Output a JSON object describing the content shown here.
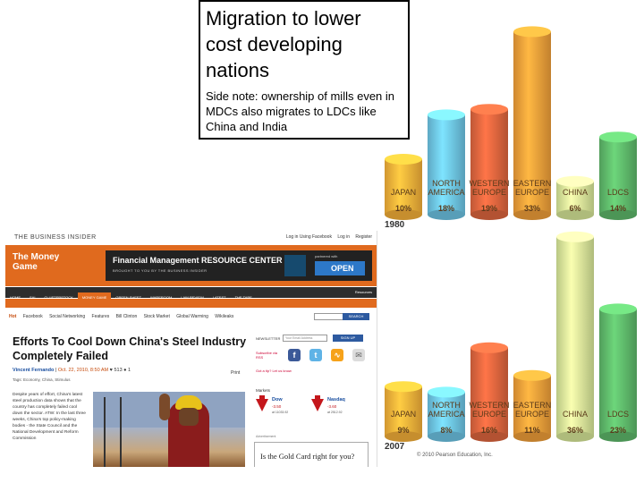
{
  "slide": {
    "title": "Migration to lower cost developing nations",
    "side_note": "Side note: ownership of mills even in MDCs also migrates to LDCs like China and India"
  },
  "chart_data": [
    {
      "type": "bar",
      "title": "",
      "year": "1980",
      "categories": [
        "JAPAN",
        "NORTH AMERICA",
        "WESTERN EUROPE",
        "EASTERN EUROPE",
        "CHINA",
        "LDCS"
      ],
      "values": [
        10,
        18,
        19,
        33,
        6,
        14
      ],
      "value_labels": [
        "10%",
        "18%",
        "19%",
        "33%",
        "6%",
        "14%"
      ],
      "colors": [
        "#f7b23a",
        "#6ec6e6",
        "#e0663f",
        "#f3a03a",
        "#d9ea9a",
        "#5fba6b"
      ]
    },
    {
      "type": "bar",
      "title": "",
      "year": "2007",
      "categories": [
        "JAPAN",
        "NORTH AMERICA",
        "WESTERN EUROPE",
        "EASTERN EUROPE",
        "CHINA",
        "LDCS"
      ],
      "values": [
        9,
        8,
        16,
        11,
        36,
        23
      ],
      "value_labels": [
        "9%",
        "8%",
        "16%",
        "11%",
        "36%",
        "23%"
      ],
      "colors": [
        "#f7b23a",
        "#6ec6e6",
        "#e0663f",
        "#f3a03a",
        "#d9ea9a",
        "#5fba6b"
      ]
    }
  ],
  "copyright": "© 2010 Pearson Education, Inc.",
  "article": {
    "site_name": "THE BUSINESS INSIDER",
    "section_title": "The Money Game",
    "login_links": [
      "Log in Using Facebook",
      "Log in",
      "Register"
    ],
    "banner": {
      "title": "Financial Management RESOURCE CENTER",
      "subtitle": "BROUGHT TO YOU BY THE BUSINESS INSIDER",
      "partner": "partnered with",
      "open_label": "OPEN"
    },
    "nav": [
      "HOME",
      "SAI",
      "CLUSTERSTOCK",
      "MONEY GAME",
      "GREEN SHEET",
      "WAREROOM",
      "LAW REVIEW",
      "LATEST",
      "THE TAPE"
    ],
    "nav_active": "MONEY GAME",
    "nav_right": "Resources",
    "subnav": [
      "ECONOMY",
      "MARKETS",
      "INVESTING",
      "BEST COMMENTED",
      "THE TAPE"
    ],
    "tags": [
      "Hot",
      "Facebook",
      "Social Networking",
      "Features",
      "Bill Clinton",
      "Stock Market",
      "Global Warming",
      "Wikileaks"
    ],
    "search_label": "SEARCH",
    "headline": "Efforts To Cool Down China's Steel Industry Completely Failed",
    "author": "Vincent Fernando",
    "date": "Oct. 22, 2010, 8:50 AM",
    "likes": "513",
    "comments": "1",
    "print_label": "Print",
    "article_tags": "Tags: Economy, China, Stimulus",
    "body": "Despite years of effort, China's latest steel production data shows that the country has completely failed cool down the sector. ATW: In the last three weeks, China's top policy-making bodies - the State Council and the National Development and Reform Commission",
    "newsletter_label": "NEWSLETTER",
    "newsletter_placeholder": "Your Email Address",
    "signup_label": "SIGN UP",
    "subscribe_label": "Subscribe via RSS",
    "tips_label": "Got a tip? Let us know",
    "markets_label": "Markets",
    "dow": {
      "name": "Dow",
      "change": "-3.50",
      "at": "at 11033.92"
    },
    "nasdaq": {
      "name": "Nasdaq",
      "change": "-3.60",
      "at": "at 2512.92"
    },
    "ad_label": "Advertisement",
    "ad_text": "Is the Gold Card right for you?"
  }
}
